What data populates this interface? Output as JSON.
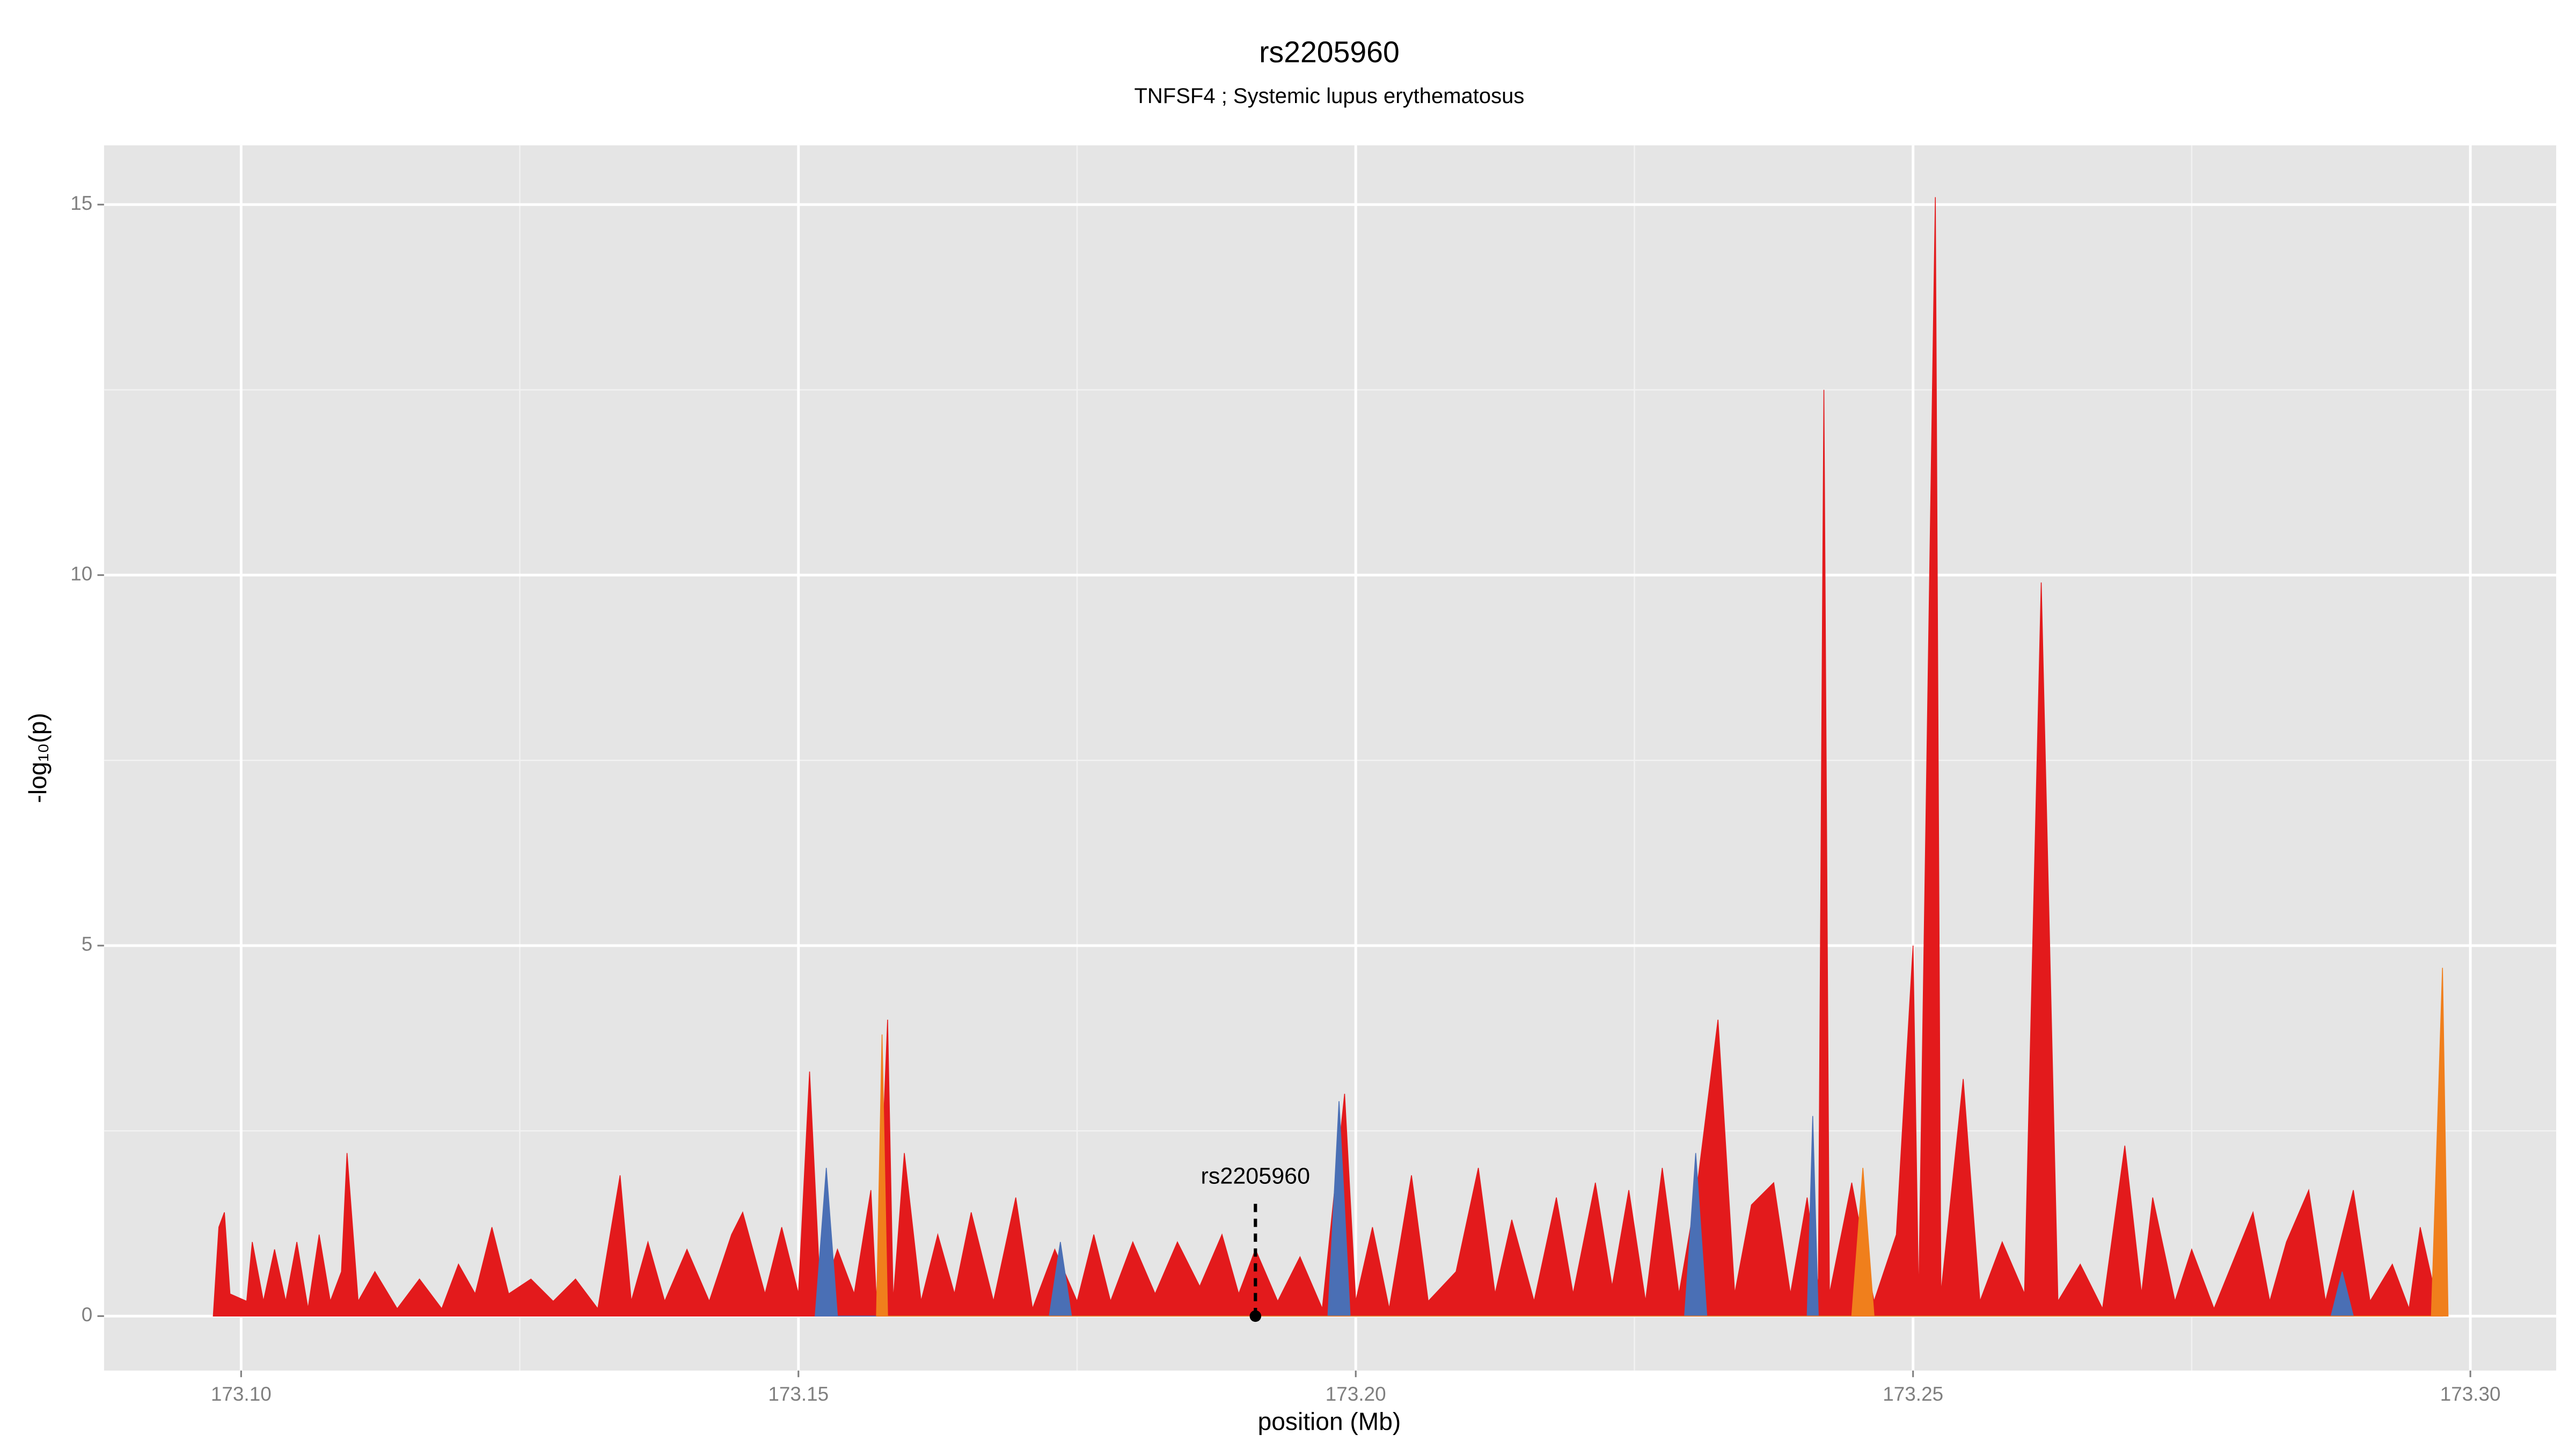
{
  "chart_data": {
    "type": "area",
    "title": "rs2205960",
    "subtitle": "TNFSF4 ; Systemic lupus erythematosus",
    "x_label": "position (Mb)",
    "y_label": "-log₁₀(p)",
    "xlim": [
      173.0877,
      173.3077
    ],
    "ylim": [
      -0.735,
      15.8
    ],
    "xticks": [
      {
        "value": 173.1,
        "label": "173.10"
      },
      {
        "value": 173.15,
        "label": "173.15"
      },
      {
        "value": 173.2,
        "label": "173.20"
      },
      {
        "value": 173.25,
        "label": "173.25"
      },
      {
        "value": 173.3,
        "label": "173.30"
      }
    ],
    "yticks": [
      0,
      5,
      10,
      15
    ],
    "x_minor_ticks": [
      173.125,
      173.175,
      173.225,
      173.275
    ],
    "y_minor_ticks": [
      2.5,
      7.5,
      12.5
    ],
    "grid": true,
    "series": [
      {
        "color": "#e31a1c",
        "x": [
          173.0975,
          173.098,
          173.0985,
          173.099,
          173.1005,
          173.101,
          173.102,
          173.103,
          173.104,
          173.105,
          173.106,
          173.107,
          173.108,
          173.109,
          173.1095,
          173.1105,
          173.112,
          173.114,
          173.116,
          173.118,
          173.1195,
          173.121,
          173.1225,
          173.124,
          173.126,
          173.128,
          173.13,
          173.132,
          173.134,
          173.135,
          173.1365,
          173.138,
          173.14,
          173.142,
          173.144,
          173.145,
          173.147,
          173.1485,
          173.15,
          173.151,
          173.152,
          173.1535,
          173.155,
          173.1565,
          173.157,
          173.158,
          173.1585,
          173.1595,
          173.161,
          173.1625,
          173.164,
          173.1655,
          173.1675,
          173.1695,
          173.171,
          173.173,
          173.175,
          173.1765,
          173.178,
          173.18,
          173.182,
          173.184,
          173.186,
          173.188,
          173.1895,
          173.191,
          173.193,
          173.195,
          173.197,
          173.199,
          173.2,
          173.2015,
          173.203,
          173.205,
          173.2065,
          173.209,
          173.211,
          173.2125,
          173.214,
          173.216,
          173.218,
          173.2195,
          173.2215,
          173.223,
          173.2245,
          173.226,
          173.2275,
          173.229,
          173.2305,
          173.2325,
          173.234,
          173.2355,
          173.2375,
          173.239,
          173.2405,
          173.2415,
          173.242,
          173.2425,
          173.2445,
          173.2465,
          173.2485,
          173.25,
          173.2505,
          173.252,
          173.2525,
          173.2545,
          173.256,
          173.258,
          173.26,
          173.2615,
          173.263,
          173.265,
          173.267,
          173.269,
          173.2705,
          173.2715,
          173.2735,
          173.275,
          173.277,
          173.2805,
          173.282,
          173.2835,
          173.2855,
          173.287,
          173.2895,
          173.291,
          173.293,
          173.2945,
          173.2955,
          173.297,
          173.2975
        ],
        "values": [
          0,
          1.2,
          1.4,
          0.3,
          0.2,
          1.0,
          0.2,
          0.9,
          0.2,
          1.0,
          0.1,
          1.1,
          0.2,
          0.6,
          2.2,
          0.2,
          0.6,
          0.1,
          0.5,
          0.1,
          0.7,
          0.3,
          1.2,
          0.3,
          0.5,
          0.2,
          0.5,
          0.1,
          1.9,
          0.2,
          1.0,
          0.2,
          0.9,
          0.2,
          1.1,
          1.4,
          0.3,
          1.2,
          0.3,
          3.3,
          0.2,
          0.9,
          0.3,
          1.7,
          0.2,
          4.0,
          0.2,
          2.2,
          0.2,
          1.1,
          0.3,
          1.4,
          0.2,
          1.6,
          0.1,
          0.9,
          0.2,
          1.1,
          0.2,
          1.0,
          0.3,
          1.0,
          0.4,
          1.1,
          0.3,
          0.9,
          0.2,
          0.8,
          0.1,
          3.0,
          0.2,
          1.2,
          0.1,
          1.9,
          0.2,
          0.6,
          2.0,
          0.3,
          1.3,
          0.2,
          1.6,
          0.3,
          1.8,
          0.4,
          1.7,
          0.2,
          2.0,
          0.3,
          1.6,
          4.0,
          0.3,
          1.5,
          1.8,
          0.3,
          1.6,
          0.4,
          12.5,
          0.3,
          1.8,
          0.2,
          1.1,
          5.0,
          0.2,
          15.1,
          0.3,
          3.2,
          0.2,
          1.0,
          0.3,
          9.9,
          0.2,
          0.7,
          0.1,
          2.3,
          0.3,
          1.6,
          0.2,
          0.9,
          0.1,
          1.4,
          0.2,
          1.0,
          1.7,
          0.2,
          1.7,
          0.2,
          0.7,
          0.1,
          1.2,
          0.2,
          0
        ]
      },
      {
        "color": "#4a6fb5",
        "x": [
          173.1515,
          173.1525,
          173.1535,
          173.1725,
          173.1735,
          173.1745,
          173.1975,
          173.1985,
          173.1995,
          173.2295,
          173.2305,
          173.2315,
          173.2405,
          173.241,
          173.2415,
          173.2875,
          173.2885,
          173.2895
        ],
        "values": [
          0,
          2.0,
          0,
          0,
          1.0,
          0,
          0,
          2.9,
          0,
          0,
          2.2,
          0,
          0,
          2.7,
          0,
          0,
          0.6,
          0
        ]
      },
      {
        "color": "#f07f1c",
        "x": [
          173.157,
          173.1575,
          173.158,
          173.2445,
          173.2455,
          173.2465,
          173.2965,
          173.2975,
          173.298
        ],
        "values": [
          0,
          3.8,
          0,
          0,
          2.0,
          0,
          0,
          4.7,
          0
        ]
      }
    ],
    "annotation": {
      "text": "rs2205960",
      "x": 173.191,
      "y": 0
    }
  }
}
